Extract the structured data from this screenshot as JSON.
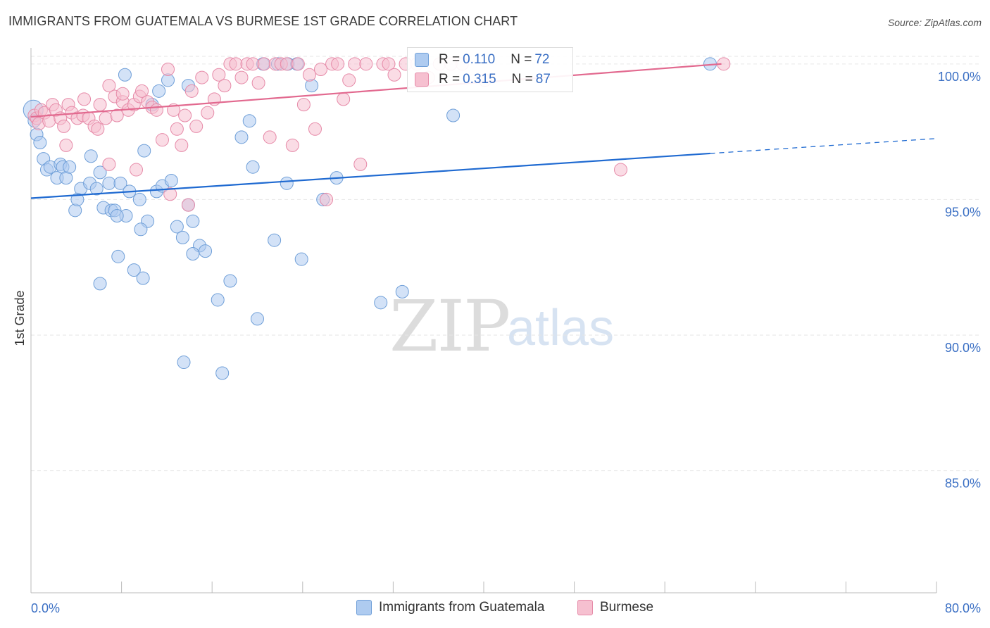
{
  "header": {
    "title": "IMMIGRANTS FROM GUATEMALA VS BURMESE 1ST GRADE CORRELATION CHART",
    "source": "Source: ZipAtlas.com"
  },
  "watermark": {
    "zip": "ZIP",
    "atlas": "atlas"
  },
  "legend_top": {
    "rows": [
      {
        "r_label": "R =",
        "r_value": "0.110",
        "n_label": "N =",
        "n_value": "72"
      },
      {
        "r_label": "R =",
        "r_value": "0.315",
        "n_label": "N =",
        "n_value": "87"
      }
    ]
  },
  "legend_bottom": {
    "items": [
      {
        "label": "Immigrants from Guatemala"
      },
      {
        "label": "Burmese"
      }
    ]
  },
  "colors": {
    "blue_fill": "#aecbf0",
    "blue_stroke": "#6f9fd8",
    "blue_line": "#1f6ad1",
    "pink_fill": "#f6c0d0",
    "pink_stroke": "#e68aa8",
    "pink_line": "#e2698f",
    "axis_text": "#3a6fc4",
    "grid": "#e6e6e6"
  },
  "chart_data": {
    "type": "scatter",
    "title": "IMMIGRANTS FROM GUATEMALA VS BURMESE 1ST GRADE CORRELATION CHART",
    "xlabel": "",
    "ylabel": "1st Grade",
    "xlim": [
      0,
      80
    ],
    "ylim": [
      80.5,
      100.8
    ],
    "x_tick_labels": [
      "0.0%",
      "80.0%"
    ],
    "y_ticks": [
      85,
      90,
      95,
      100
    ],
    "y_tick_labels": [
      "85.0%",
      "90.0%",
      "95.0%",
      "100.0%"
    ],
    "grid": "horizontal dashed",
    "legend_position": "top-center",
    "series": [
      {
        "name": "Immigrants from Guatemala",
        "r": 0.11,
        "n": 72,
        "trend": {
          "x0": 0,
          "y0": 95.05,
          "x1": 60,
          "y1": 96.7,
          "dashed_to_x": 80,
          "dashed_to_y": 97.25
        },
        "points": [
          [
            0.2,
            98.3
          ],
          [
            0.3,
            97.9
          ],
          [
            0.5,
            97.4
          ],
          [
            0.8,
            97.1
          ],
          [
            1.1,
            96.5
          ],
          [
            1.4,
            96.1
          ],
          [
            1.7,
            96.2
          ],
          [
            2.3,
            95.8
          ],
          [
            2.6,
            96.3
          ],
          [
            2.8,
            96.2
          ],
          [
            3.1,
            95.8
          ],
          [
            3.4,
            96.2
          ],
          [
            3.9,
            94.6
          ],
          [
            4.4,
            95.4
          ],
          [
            5.3,
            96.6
          ],
          [
            5.2,
            95.6
          ],
          [
            5.8,
            95.4
          ],
          [
            6.1,
            96.0
          ],
          [
            6.4,
            94.7
          ],
          [
            6.9,
            95.6
          ],
          [
            7.1,
            94.6
          ],
          [
            7.4,
            94.6
          ],
          [
            7.9,
            95.6
          ],
          [
            7.7,
            92.9
          ],
          [
            8.4,
            94.4
          ],
          [
            8.7,
            95.3
          ],
          [
            9.1,
            92.4
          ],
          [
            9.6,
            95.0
          ],
          [
            9.9,
            92.1
          ],
          [
            10.3,
            94.2
          ],
          [
            10.7,
            98.5
          ],
          [
            11.1,
            95.3
          ],
          [
            11.6,
            95.5
          ],
          [
            12.4,
            95.7
          ],
          [
            12.9,
            94.0
          ],
          [
            13.4,
            93.6
          ],
          [
            13.9,
            94.8
          ],
          [
            14.3,
            94.2
          ],
          [
            14.9,
            93.3
          ],
          [
            15.4,
            93.1
          ],
          [
            16.5,
            91.3
          ],
          [
            16.9,
            88.6
          ],
          [
            17.6,
            92.0
          ],
          [
            18.6,
            97.3
          ],
          [
            19.3,
            97.9
          ],
          [
            19.6,
            96.2
          ],
          [
            20.0,
            90.6
          ],
          [
            20.5,
            100.0
          ],
          [
            21.5,
            93.5
          ],
          [
            21.8,
            100.0
          ],
          [
            22.6,
            95.6
          ],
          [
            23.9,
            92.8
          ],
          [
            24.8,
            99.2
          ],
          [
            25.8,
            95.0
          ],
          [
            27.0,
            95.8
          ],
          [
            30.9,
            91.2
          ],
          [
            32.8,
            91.6
          ],
          [
            37.3,
            98.1
          ],
          [
            10.0,
            96.8
          ],
          [
            8.3,
            99.6
          ],
          [
            12.1,
            99.4
          ],
          [
            13.9,
            99.2
          ],
          [
            11.3,
            99.0
          ],
          [
            7.6,
            94.4
          ],
          [
            6.1,
            91.9
          ],
          [
            13.5,
            89.0
          ],
          [
            14.3,
            93.0
          ],
          [
            9.7,
            93.9
          ],
          [
            4.1,
            95.0
          ],
          [
            22.7,
            100.0
          ],
          [
            23.5,
            100.0
          ],
          [
            60.0,
            100.0
          ]
        ]
      },
      {
        "name": "Burmese",
        "r": 0.315,
        "n": 87,
        "trend": {
          "x0": 0,
          "y0": 98.05,
          "x1": 61,
          "y1": 100.0
        },
        "points": [
          [
            0.3,
            98.1
          ],
          [
            0.5,
            98.0
          ],
          [
            0.7,
            97.8
          ],
          [
            0.9,
            98.3
          ],
          [
            1.2,
            98.2
          ],
          [
            1.6,
            97.9
          ],
          [
            1.9,
            98.5
          ],
          [
            2.2,
            98.3
          ],
          [
            2.6,
            98.0
          ],
          [
            2.9,
            97.7
          ],
          [
            3.3,
            98.5
          ],
          [
            3.6,
            98.2
          ],
          [
            4.1,
            98.0
          ],
          [
            4.6,
            98.1
          ],
          [
            4.7,
            98.7
          ],
          [
            5.1,
            98.0
          ],
          [
            5.6,
            97.7
          ],
          [
            6.1,
            98.5
          ],
          [
            6.6,
            98.0
          ],
          [
            6.9,
            99.2
          ],
          [
            7.4,
            98.8
          ],
          [
            7.6,
            98.1
          ],
          [
            8.1,
            98.6
          ],
          [
            8.6,
            98.3
          ],
          [
            9.1,
            98.5
          ],
          [
            9.6,
            98.8
          ],
          [
            9.8,
            99.0
          ],
          [
            10.3,
            98.6
          ],
          [
            10.7,
            98.4
          ],
          [
            11.1,
            98.3
          ],
          [
            11.6,
            97.2
          ],
          [
            12.1,
            99.8
          ],
          [
            12.6,
            98.3
          ],
          [
            12.9,
            97.6
          ],
          [
            13.3,
            97.0
          ],
          [
            13.6,
            98.1
          ],
          [
            14.2,
            99.0
          ],
          [
            14.6,
            97.7
          ],
          [
            15.1,
            99.5
          ],
          [
            15.6,
            98.2
          ],
          [
            16.2,
            98.7
          ],
          [
            16.6,
            99.6
          ],
          [
            17.1,
            99.2
          ],
          [
            17.6,
            100.0
          ],
          [
            18.1,
            100.0
          ],
          [
            18.6,
            99.5
          ],
          [
            19.1,
            100.0
          ],
          [
            19.6,
            100.0
          ],
          [
            20.1,
            99.3
          ],
          [
            20.6,
            100.0
          ],
          [
            21.1,
            97.3
          ],
          [
            21.6,
            100.0
          ],
          [
            22.1,
            100.0
          ],
          [
            22.6,
            100.0
          ],
          [
            23.1,
            97.0
          ],
          [
            23.6,
            100.0
          ],
          [
            24.1,
            98.5
          ],
          [
            24.6,
            99.6
          ],
          [
            25.1,
            97.6
          ],
          [
            25.6,
            99.8
          ],
          [
            26.1,
            95.0
          ],
          [
            26.6,
            100.0
          ],
          [
            27.1,
            100.0
          ],
          [
            27.6,
            98.7
          ],
          [
            28.1,
            99.4
          ],
          [
            28.6,
            100.0
          ],
          [
            29.1,
            96.3
          ],
          [
            29.6,
            100.0
          ],
          [
            31.1,
            100.0
          ],
          [
            31.6,
            100.0
          ],
          [
            32.1,
            99.6
          ],
          [
            33.1,
            100.0
          ],
          [
            34.1,
            100.0
          ],
          [
            35.1,
            99.5
          ],
          [
            36.1,
            100.0
          ],
          [
            37.1,
            100.0
          ],
          [
            38.1,
            100.0
          ],
          [
            40.1,
            99.4
          ],
          [
            52.1,
            96.1
          ],
          [
            61.2,
            100.0
          ],
          [
            3.1,
            97.0
          ],
          [
            6.9,
            96.3
          ],
          [
            9.3,
            96.1
          ],
          [
            12.3,
            95.2
          ],
          [
            13.9,
            94.8
          ],
          [
            5.9,
            97.6
          ],
          [
            8.1,
            98.9
          ]
        ]
      }
    ]
  }
}
